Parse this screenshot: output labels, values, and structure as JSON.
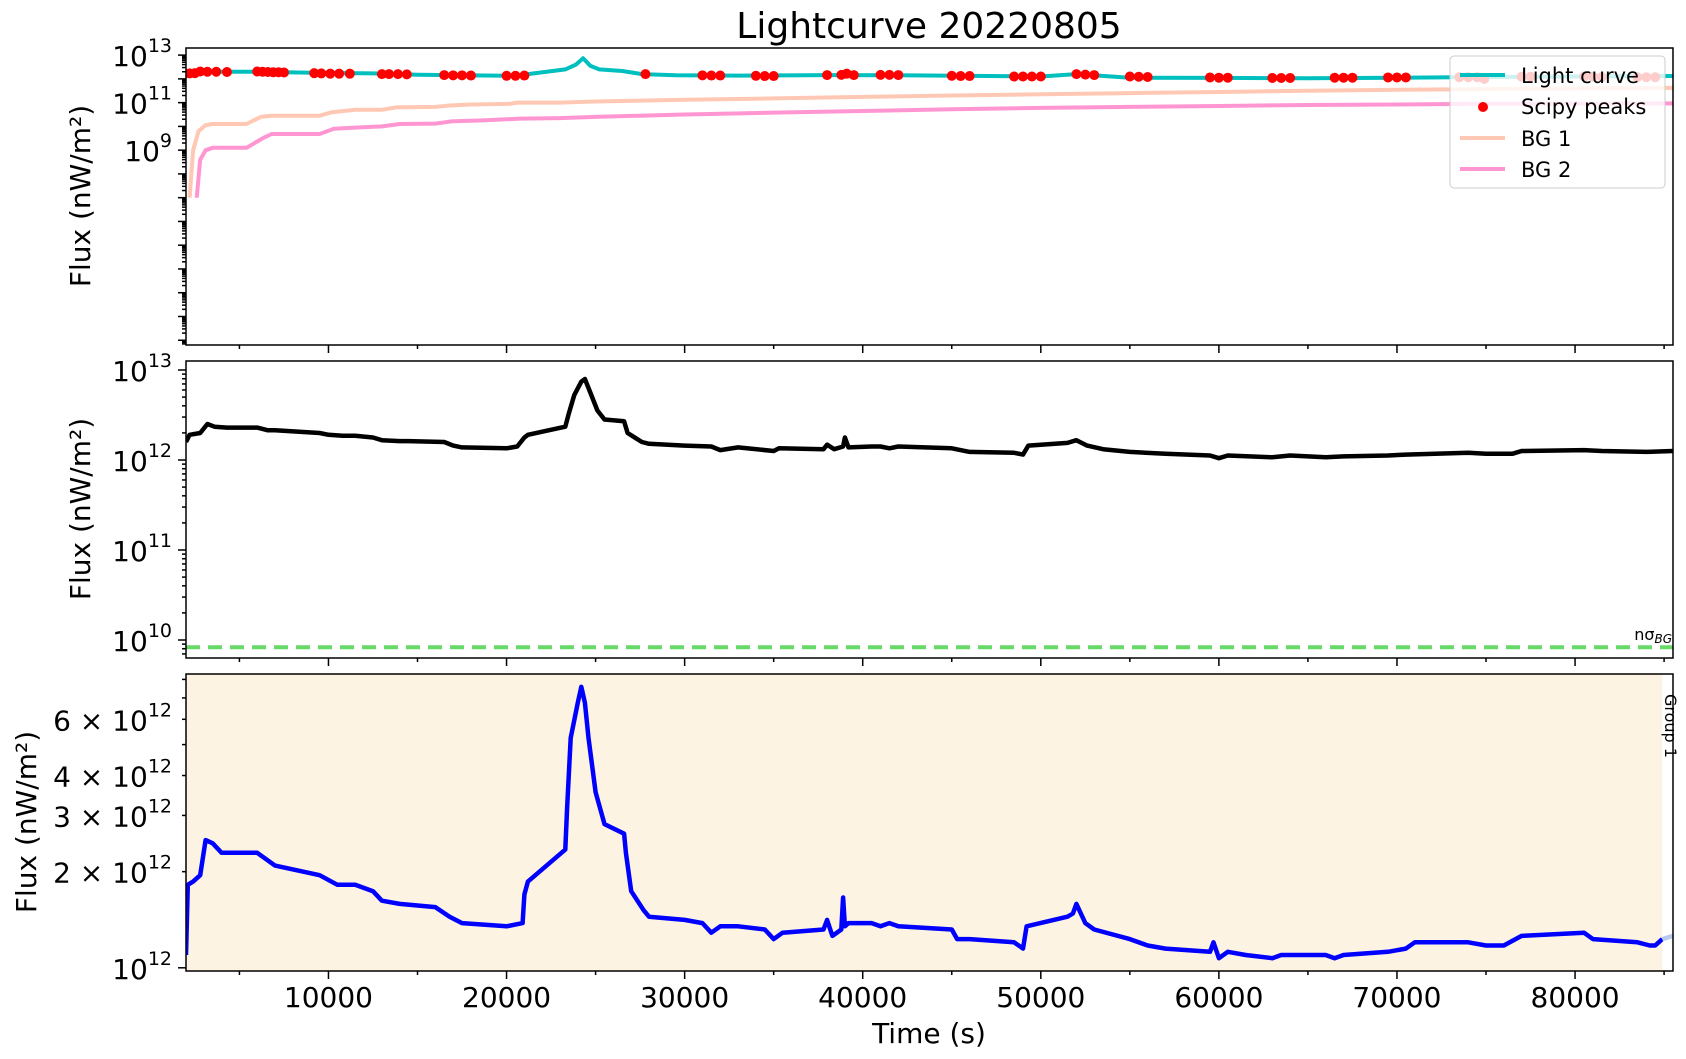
{
  "chart_data": [
    {
      "type": "line",
      "title": "Lightcurve 20220805",
      "ylabel": "Flux (nW/m²)",
      "yscale": "log",
      "xlim": [
        2000,
        85500
      ],
      "ylim": [
        0.8,
        13.3
      ],
      "ytick_labels": [
        {
          "exp": "9",
          "v": 9
        },
        {
          "exp": "11",
          "v": 11
        },
        {
          "exp": "13",
          "v": 13
        }
      ],
      "legend": {
        "placement": "top-right",
        "entries": [
          "Light curve",
          "Scipy peaks",
          "BG 1",
          "BG 2"
        ]
      },
      "colors": {
        "light_curve": "#00bfbf",
        "peaks": "#ff0000",
        "bg1": "#ffc8b4",
        "bg2": "#ff96d2"
      },
      "series": [
        {
          "name": "Light curve",
          "x": [
            2100,
            2600,
            3500,
            6000,
            9500,
            12500,
            15000,
            17500,
            20500,
            21200,
            23300,
            23900,
            24300,
            24700,
            25200,
            26500,
            27600,
            29500,
            33000,
            38000,
            42000,
            50000,
            52000,
            55000,
            60000,
            65000,
            70000,
            75000,
            80000,
            85500
          ],
          "y": [
            12.23,
            12.29,
            12.3,
            12.3,
            12.25,
            12.23,
            12.17,
            12.15,
            12.13,
            12.2,
            12.4,
            12.6,
            12.87,
            12.55,
            12.4,
            12.33,
            12.2,
            12.15,
            12.14,
            12.16,
            12.15,
            12.1,
            12.2,
            12.05,
            12.04,
            12.03,
            12.05,
            12.08,
            12.1,
            12.12
          ]
        },
        {
          "name": "Scipy peaks",
          "x": [
            2200,
            2500,
            2800,
            3200,
            3700,
            4300,
            6000,
            6300,
            6600,
            6900,
            7200,
            7500,
            9200,
            9600,
            10100,
            10600,
            11200,
            13000,
            13400,
            13900,
            14400,
            16500,
            17000,
            17500,
            18000,
            20000,
            20500,
            21000,
            27800,
            31000,
            31500,
            32000,
            34000,
            34500,
            35000,
            38000,
            38800,
            39100,
            39500,
            41000,
            41500,
            42000,
            45000,
            45500,
            46000,
            48500,
            49000,
            49500,
            50000,
            52000,
            52500,
            53000,
            55000,
            55500,
            56000,
            59500,
            60000,
            60500,
            63000,
            63500,
            64000,
            66500,
            67000,
            67500,
            69500,
            70000,
            70500,
            73500,
            74000,
            74500,
            74900,
            77000,
            77500,
            80500,
            81000,
            81500,
            83500,
            84000,
            84500
          ],
          "y": [
            12.23,
            12.24,
            12.31,
            12.3,
            12.3,
            12.29,
            12.31,
            12.3,
            12.29,
            12.28,
            12.28,
            12.27,
            12.24,
            12.23,
            12.22,
            12.22,
            12.22,
            12.2,
            12.2,
            12.2,
            12.19,
            12.16,
            12.15,
            12.15,
            12.14,
            12.13,
            12.13,
            12.14,
            12.2,
            12.15,
            12.14,
            12.14,
            12.13,
            12.12,
            12.12,
            12.16,
            12.17,
            12.22,
            12.16,
            12.17,
            12.17,
            12.16,
            12.13,
            12.12,
            12.12,
            12.1,
            12.1,
            12.1,
            12.1,
            12.2,
            12.18,
            12.16,
            12.1,
            12.09,
            12.08,
            12.06,
            12.05,
            12.05,
            12.04,
            12.04,
            12.04,
            12.05,
            12.05,
            12.05,
            12.06,
            12.06,
            12.06,
            12.07,
            12.07,
            12.07,
            12.0,
            12.09,
            12.09,
            12.1,
            12.09,
            12.08,
            12.07,
            12.07,
            12.07
          ]
        },
        {
          "name": "BG 1",
          "x": [
            2200,
            2400,
            2700,
            3100,
            3500,
            4000,
            5400,
            6200,
            6800,
            9500,
            10200,
            11500,
            13000,
            13800,
            16000,
            16800,
            18000,
            20200,
            20600,
            23000,
            25000,
            30000,
            35000,
            40000,
            45000,
            50000,
            55000,
            60000,
            65000,
            70000,
            75000,
            80000,
            85500
          ],
          "y": [
            7.0,
            9.0,
            9.8,
            10.05,
            10.1,
            10.1,
            10.1,
            10.4,
            10.45,
            10.45,
            10.6,
            10.7,
            10.7,
            10.8,
            10.82,
            10.88,
            10.92,
            10.95,
            11.0,
            11.0,
            11.05,
            11.12,
            11.18,
            11.24,
            11.3,
            11.35,
            11.4,
            11.45,
            11.5,
            11.54,
            11.57,
            11.6,
            11.62
          ]
        },
        {
          "name": "BG 2",
          "x": [
            2600,
            2800,
            3100,
            3500,
            4000,
            5400,
            6300,
            6800,
            9500,
            10300,
            11500,
            13000,
            14000,
            16000,
            17000,
            18500,
            20000,
            20800,
            23000,
            25000,
            30000,
            35000,
            40000,
            45000,
            50000,
            55000,
            60000,
            65000,
            70000,
            75000,
            80000,
            85500
          ],
          "y": [
            7.0,
            8.6,
            9.0,
            9.1,
            9.1,
            9.1,
            9.5,
            9.68,
            9.68,
            9.9,
            9.95,
            10.0,
            10.1,
            10.12,
            10.22,
            10.25,
            10.3,
            10.33,
            10.35,
            10.4,
            10.5,
            10.58,
            10.65,
            10.72,
            10.78,
            10.82,
            10.86,
            10.9,
            10.92,
            10.95,
            10.96,
            10.97
          ]
        }
      ]
    },
    {
      "type": "line",
      "ylabel": "Flux (nW/m²)",
      "yscale": "log",
      "xlim": [
        2000,
        85500
      ],
      "ylim": [
        9.8,
        13.1
      ],
      "ytick_labels": [
        {
          "exp": "10",
          "v": 10
        },
        {
          "exp": "11",
          "v": 11
        },
        {
          "exp": "12",
          "v": 12
        },
        {
          "exp": "13",
          "v": 13
        }
      ],
      "threshold": {
        "value": 9.92,
        "label": "nσ",
        "label_sub": "BG",
        "color": "#66d966"
      },
      "series": [
        {
          "name": "",
          "x": [
            2000,
            2200,
            2800,
            3200,
            3600,
            4300,
            6000,
            6600,
            7000,
            9500,
            10000,
            10800,
            11500,
            12500,
            13000,
            14000,
            14500,
            16500,
            17000,
            17500,
            20000,
            20600,
            21000,
            21200,
            23300,
            23500,
            23800,
            24200,
            24400,
            24700,
            25100,
            25500,
            26600,
            26800,
            27600,
            28000,
            30000,
            31500,
            32000,
            33000,
            35000,
            35300,
            37800,
            38000,
            38400,
            38900,
            39000,
            39200,
            40500,
            41000,
            41500,
            42000,
            45000,
            46000,
            48500,
            49000,
            49300,
            51500,
            52000,
            52600,
            53500,
            55000,
            57000,
            59500,
            60000,
            60500,
            63000,
            64000,
            66000,
            67000,
            69500,
            70500,
            74000,
            75000,
            76500,
            77000,
            80500,
            81500,
            84000,
            85500
          ],
          "y": [
            12.2,
            12.28,
            12.3,
            12.4,
            12.37,
            12.36,
            12.36,
            12.33,
            12.33,
            12.3,
            12.28,
            12.27,
            12.27,
            12.25,
            12.22,
            12.21,
            12.21,
            12.2,
            12.16,
            12.14,
            12.13,
            12.15,
            12.25,
            12.28,
            12.37,
            12.52,
            12.72,
            12.87,
            12.9,
            12.75,
            12.55,
            12.45,
            12.43,
            12.3,
            12.2,
            12.18,
            12.16,
            12.15,
            12.11,
            12.14,
            12.1,
            12.13,
            12.12,
            12.17,
            12.12,
            12.15,
            12.25,
            12.14,
            12.15,
            12.15,
            12.13,
            12.15,
            12.13,
            12.09,
            12.08,
            12.06,
            12.16,
            12.19,
            12.22,
            12.16,
            12.12,
            12.09,
            12.07,
            12.05,
            12.02,
            12.05,
            12.03,
            12.05,
            12.03,
            12.04,
            12.05,
            12.06,
            12.08,
            12.07,
            12.07,
            12.1,
            12.11,
            12.1,
            12.09,
            12.1
          ]
        }
      ]
    },
    {
      "type": "line",
      "xlabel": "Time (s)",
      "ylabel": "Flux (nW/m²)",
      "yscale": "log",
      "xlim": [
        2000,
        85500
      ],
      "ylim": [
        11.99,
        12.92
      ],
      "xticks": [
        10000,
        20000,
        30000,
        40000,
        50000,
        60000,
        70000,
        80000
      ],
      "ytick_labels": [
        {
          "mant": "",
          "exp": "12",
          "v": 12
        },
        {
          "mant": "2 × ",
          "exp": "12",
          "v": 12.301
        },
        {
          "mant": "3 × ",
          "exp": "12",
          "v": 12.477
        },
        {
          "mant": "4 × ",
          "exp": "12",
          "v": 12.602
        },
        {
          "mant": "6 × ",
          "exp": "12",
          "v": 12.778
        }
      ],
      "shaded_region": {
        "x": [
          2000,
          84900
        ],
        "label": "Group 1",
        "color": "#fdf3e3"
      },
      "series": [
        {
          "name": "",
          "x": [
            2000,
            2100,
            2400,
            2800,
            3100,
            3500,
            4000,
            4300,
            6000,
            6500,
            7000,
            9500,
            10500,
            11500,
            12500,
            13000,
            14000,
            16000,
            16800,
            17500,
            20000,
            20900,
            21000,
            21200,
            23300,
            23400,
            23600,
            24000,
            24200,
            24400,
            24600,
            25000,
            25500,
            26600,
            26700,
            27000,
            27700,
            28000,
            30000,
            31000,
            31500,
            32000,
            33000,
            34500,
            35000,
            35500,
            37800,
            38000,
            38300,
            38800,
            38900,
            39000,
            39200,
            40500,
            41000,
            41500,
            42000,
            45000,
            45300,
            46000,
            48500,
            49000,
            49200,
            51500,
            51800,
            52000,
            52500,
            53000,
            55000,
            56000,
            57000,
            59500,
            59700,
            60000,
            60500,
            61500,
            63000,
            63500,
            64000,
            66000,
            66500,
            67000,
            69500,
            70500,
            71000,
            74000,
            75000,
            76000,
            77000,
            80500,
            81000,
            83500,
            84200,
            84500,
            84900
          ],
          "y": [
            12.04,
            12.26,
            12.27,
            12.29,
            12.4,
            12.39,
            12.36,
            12.36,
            12.36,
            12.34,
            12.32,
            12.29,
            12.26,
            12.26,
            12.24,
            12.21,
            12.2,
            12.19,
            12.16,
            12.14,
            12.13,
            12.14,
            12.23,
            12.27,
            12.37,
            12.5,
            12.72,
            12.83,
            12.88,
            12.83,
            12.72,
            12.55,
            12.45,
            12.42,
            12.36,
            12.24,
            12.18,
            12.16,
            12.15,
            12.14,
            12.11,
            12.13,
            12.13,
            12.12,
            12.09,
            12.11,
            12.12,
            12.15,
            12.1,
            12.12,
            12.22,
            12.13,
            12.14,
            12.14,
            12.13,
            12.14,
            12.13,
            12.12,
            12.09,
            12.09,
            12.08,
            12.06,
            12.13,
            12.16,
            12.17,
            12.2,
            12.14,
            12.12,
            12.09,
            12.07,
            12.06,
            12.05,
            12.08,
            12.03,
            12.05,
            12.04,
            12.03,
            12.04,
            12.04,
            12.04,
            12.03,
            12.04,
            12.05,
            12.06,
            12.08,
            12.08,
            12.07,
            12.07,
            12.1,
            12.11,
            12.09,
            12.08,
            12.07,
            12.07,
            12.09
          ]
        },
        {
          "name": "",
          "x": [
            84900,
            85500
          ],
          "y": [
            12.09,
            12.1
          ],
          "faded": true
        }
      ]
    }
  ]
}
